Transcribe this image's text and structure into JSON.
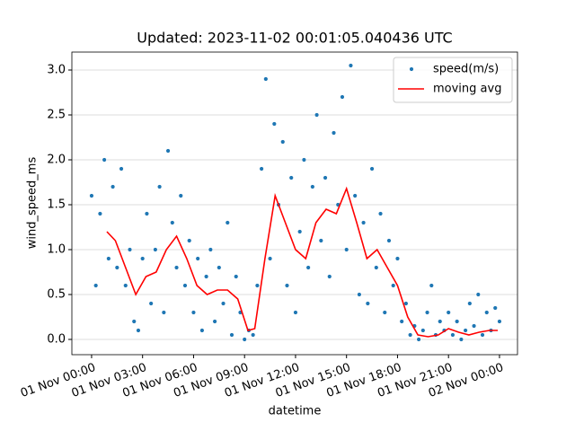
{
  "chart_data": {
    "type": "scatter",
    "title": "Updated: 2023-11-02 00:01:05.040436 UTC",
    "x_label": "datetime",
    "y_label": "wind_speed_ms",
    "xlim": [
      -1.16,
      25.06
    ],
    "ylim": [
      -0.17,
      3.2
    ],
    "xticks": [
      {
        "value": 0,
        "label": "01 Nov 00:00"
      },
      {
        "value": 3,
        "label": "01 Nov 03:00"
      },
      {
        "value": 6,
        "label": "01 Nov 06:00"
      },
      {
        "value": 9,
        "label": "01 Nov 09:00"
      },
      {
        "value": 12,
        "label": "01 Nov 12:00"
      },
      {
        "value": 15,
        "label": "01 Nov 15:00"
      },
      {
        "value": 18,
        "label": "01 Nov 18:00"
      },
      {
        "value": 21,
        "label": "01 Nov 21:00"
      },
      {
        "value": 24,
        "label": "02 Nov 00:00"
      }
    ],
    "yticks": [
      {
        "value": 0,
        "label": "0.0"
      },
      0.5,
      {
        "value": 1,
        "label": "1.0"
      },
      1.5,
      {
        "value": 2,
        "label": "2.0"
      },
      2.5,
      {
        "value": 3,
        "label": "3.0"
      }
    ],
    "grid": "y",
    "legend": "upper right",
    "series": [
      {
        "name": "speed(m/s)",
        "type": "scatter",
        "color": "#1f77b4",
        "x": [
          0,
          0.25,
          0.5,
          0.75,
          1,
          1.25,
          1.5,
          1.75,
          2,
          2.25,
          2.5,
          2.75,
          3,
          3.25,
          3.5,
          3.75,
          4,
          4.25,
          4.5,
          4.75,
          5,
          5.25,
          5.5,
          5.75,
          6,
          6.25,
          6.5,
          6.75,
          7,
          7.25,
          7.5,
          7.75,
          8,
          8.25,
          8.5,
          8.75,
          9,
          9.25,
          9.5,
          9.75,
          10,
          10.25,
          10.5,
          10.75,
          11,
          11.25,
          11.5,
          11.75,
          12,
          12.25,
          12.5,
          12.75,
          13,
          13.25,
          13.5,
          13.75,
          14,
          14.25,
          14.5,
          14.75,
          15,
          15.25,
          15.5,
          15.75,
          16,
          16.25,
          16.5,
          16.75,
          17,
          17.25,
          17.5,
          17.75,
          18,
          18.25,
          18.5,
          18.75,
          19,
          19.25,
          19.5,
          19.75,
          20,
          20.25,
          20.5,
          20.75,
          21,
          21.25,
          21.5,
          21.75,
          22,
          22.25,
          22.5,
          22.75,
          23,
          23.25,
          23.5,
          23.75,
          24
        ],
        "values": [
          1.6,
          0.6,
          1.4,
          2.0,
          0.9,
          1.7,
          0.8,
          1.9,
          0.6,
          1.0,
          0.2,
          0.1,
          0.9,
          1.4,
          0.4,
          1.0,
          1.7,
          0.3,
          2.1,
          1.3,
          0.8,
          1.6,
          0.6,
          1.1,
          0.3,
          0.9,
          0.1,
          0.7,
          1.0,
          0.2,
          0.8,
          0.4,
          1.3,
          0.05,
          0.7,
          0.3,
          0.0,
          0.1,
          0.05,
          0.6,
          1.9,
          2.9,
          0.9,
          2.4,
          1.5,
          2.2,
          0.6,
          1.8,
          0.3,
          1.2,
          2.0,
          0.8,
          1.7,
          2.5,
          1.1,
          1.8,
          0.7,
          2.3,
          1.5,
          2.7,
          1.0,
          3.05,
          1.6,
          0.5,
          1.3,
          0.4,
          1.9,
          0.8,
          1.4,
          0.3,
          1.1,
          0.6,
          0.9,
          0.2,
          0.4,
          0.05,
          0.15,
          0.0,
          0.1,
          0.3,
          0.6,
          0.05,
          0.2,
          0.1,
          0.3,
          0.05,
          0.2,
          0.0,
          0.1,
          0.4,
          0.15,
          0.5,
          0.05,
          0.3,
          0.1,
          0.35,
          0.2
        ]
      },
      {
        "name": "moving avg",
        "type": "line",
        "color": "#ff0000",
        "x": [
          0.9,
          1.4,
          2.0,
          2.6,
          3.2,
          3.8,
          4.4,
          5.0,
          5.6,
          6.2,
          6.8,
          7.4,
          8.0,
          8.6,
          9.2,
          9.6,
          10.2,
          10.8,
          11.4,
          12.0,
          12.6,
          13.2,
          13.8,
          14.4,
          15.0,
          15.6,
          16.2,
          16.8,
          17.4,
          18.0,
          18.6,
          19.2,
          19.8,
          20.4,
          21.0,
          21.6,
          22.2,
          22.8,
          23.4,
          23.9
        ],
        "values": [
          1.2,
          1.1,
          0.8,
          0.5,
          0.7,
          0.75,
          1.0,
          1.15,
          0.9,
          0.6,
          0.5,
          0.55,
          0.55,
          0.45,
          0.1,
          0.12,
          0.9,
          1.6,
          1.3,
          1.0,
          0.9,
          1.3,
          1.45,
          1.4,
          1.68,
          1.3,
          0.9,
          1.0,
          0.8,
          0.6,
          0.25,
          0.05,
          0.03,
          0.05,
          0.12,
          0.08,
          0.05,
          0.08,
          0.1,
          0.1
        ]
      }
    ]
  }
}
